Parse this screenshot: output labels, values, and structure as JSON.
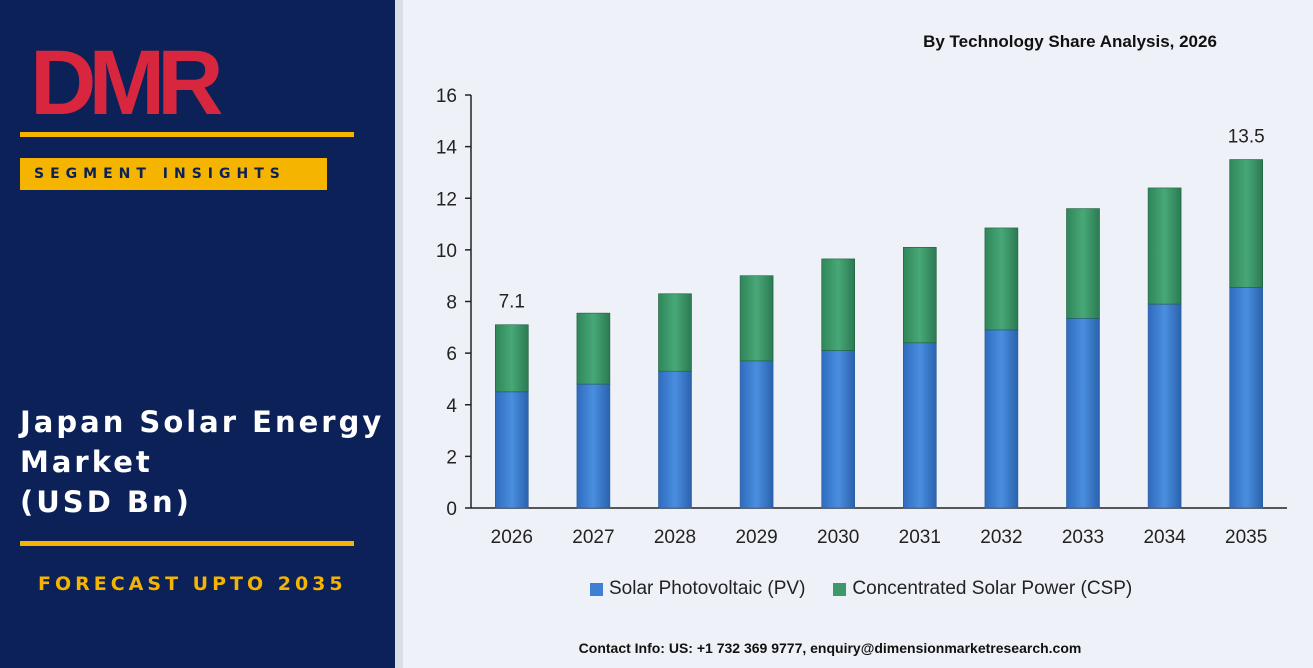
{
  "brand": {
    "logo_text": "DMR",
    "logo_colors": {
      "red": "#d7263d",
      "gray": "#c9ccd3"
    }
  },
  "left_panel": {
    "segment_label": "SEGMENT INSIGHTS",
    "title_lines": [
      "Japan Solar Energy",
      "Market",
      "(USD Bn)"
    ],
    "forecast": "FORECAST UPTO 2035"
  },
  "footer": {
    "contact": "Contact Info: US: +1 732 369 9777, enquiry@dimensionmarketresearch.com"
  },
  "colors": {
    "panel": "#0b2157",
    "accent": "#f4b400",
    "pv": "#3d7fd1",
    "csp": "#3c9a6a"
  },
  "chart_data": {
    "type": "bar",
    "stacked": true,
    "title": "By Technology Share Analysis, 2026",
    "categories": [
      "2026",
      "2027",
      "2028",
      "2029",
      "2030",
      "2031",
      "2032",
      "2033",
      "2034",
      "2035"
    ],
    "series": [
      {
        "name": "Solar Photovoltaic (PV)",
        "values": [
          4.5,
          4.8,
          5.3,
          5.7,
          6.1,
          6.4,
          6.9,
          7.35,
          7.9,
          8.55
        ]
      },
      {
        "name": "Concentrated Solar Power (CSP)",
        "values": [
          2.6,
          2.75,
          3.0,
          3.3,
          3.55,
          3.7,
          3.95,
          4.25,
          4.5,
          4.95
        ]
      }
    ],
    "data_labels": [
      {
        "category": "2026",
        "label": "7.1"
      },
      {
        "category": "2035",
        "label": "13.5"
      }
    ],
    "yticks": [
      "0",
      "2",
      "4",
      "6",
      "8",
      "10",
      "12",
      "14",
      "16"
    ],
    "ylim": [
      0,
      16
    ],
    "grid": false,
    "legend_position": "bottom"
  }
}
